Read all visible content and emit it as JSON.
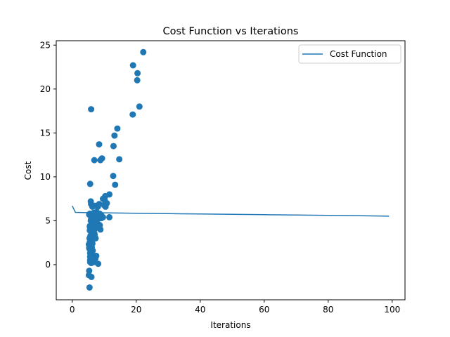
{
  "chart_data": {
    "type": "scatter",
    "title": "Cost Function vs Iterations",
    "xlabel": "Iterations",
    "ylabel": "Cost",
    "xlim": [
      -5,
      104
    ],
    "ylim": [
      -4,
      25.5
    ],
    "xticks": [
      0,
      20,
      40,
      60,
      80,
      100
    ],
    "yticks": [
      0,
      5,
      10,
      15,
      20,
      25
    ],
    "grid": false,
    "legend_position": "top-right",
    "colors": {
      "series": "#1f77b4",
      "axes": "#000000",
      "legend_border": "#cccccc"
    },
    "series": [
      {
        "name": "Cost Function",
        "type": "line",
        "x": [
          0,
          1,
          5,
          10,
          20,
          30,
          40,
          50,
          60,
          70,
          80,
          90,
          99
        ],
        "y": [
          6.7,
          5.95,
          5.92,
          5.9,
          5.85,
          5.81,
          5.77,
          5.73,
          5.69,
          5.65,
          5.61,
          5.57,
          5.52
        ]
      },
      {
        "type": "scatter",
        "x": [
          22.2,
          19.0,
          20.4,
          20.3,
          21.0,
          18.9,
          5.9,
          14.1,
          13.2,
          12.9,
          8.4,
          9.3,
          8.8,
          6.9,
          14.7,
          12.8,
          13.4,
          5.6,
          11.6,
          10.3,
          10.1,
          9.6,
          10.8,
          5.8,
          5.9,
          8.4,
          8.0,
          7.1,
          6.3,
          10.4,
          9.9,
          5.5,
          6.7,
          7.6,
          8.6,
          9.1,
          7.6,
          5.3,
          6.4,
          11.6,
          9.6,
          8.0,
          6.6,
          5.9,
          5.8,
          6.1,
          7.0,
          7.8,
          6.2,
          8.6,
          5.5,
          7.3,
          6.7,
          5.5,
          7.1,
          6.0,
          6.0,
          6.4,
          8.8,
          9.1,
          5.5,
          6.9,
          7.0,
          5.7,
          5.4,
          6.3,
          7.3,
          5.5,
          6.2,
          5.2,
          5.8,
          6.1,
          5.4,
          6.4,
          5.7,
          5.6,
          6.3,
          7.5,
          5.7,
          5.9,
          5.6,
          5.6,
          6.0,
          5.9,
          6.0,
          7.2,
          5.6,
          6.8,
          8.1,
          5.3,
          5.2,
          6.0,
          5.4,
          6.3,
          5.3
        ],
        "y": [
          24.2,
          22.7,
          21.8,
          21.0,
          18.0,
          17.1,
          17.7,
          15.5,
          14.7,
          13.5,
          13.7,
          12.1,
          11.9,
          11.9,
          12.0,
          10.1,
          9.1,
          9.2,
          8.0,
          7.8,
          7.4,
          7.5,
          7.0,
          7.2,
          6.9,
          6.9,
          6.6,
          6.7,
          6.6,
          6.6,
          6.8,
          5.8,
          5.9,
          6.0,
          5.8,
          5.6,
          5.5,
          5.7,
          5.4,
          5.4,
          5.4,
          5.2,
          5.1,
          5.2,
          5.0,
          4.9,
          4.8,
          5.0,
          4.6,
          4.5,
          4.4,
          4.4,
          4.3,
          4.3,
          4.1,
          4.0,
          3.8,
          3.6,
          4.0,
          5.3,
          3.9,
          3.6,
          3.4,
          3.3,
          3.0,
          2.9,
          3.0,
          2.6,
          2.5,
          2.3,
          2.1,
          2.0,
          1.8,
          1.6,
          1.4,
          1.3,
          1.2,
          1.0,
          0.8,
          0.6,
          0.5,
          0.3,
          0.2,
          0.2,
          0.4,
          0.7,
          0.9,
          0.3,
          0.1,
          -0.7,
          -1.2,
          -1.4,
          -2.6,
          2.4,
          1.9
        ]
      }
    ]
  }
}
